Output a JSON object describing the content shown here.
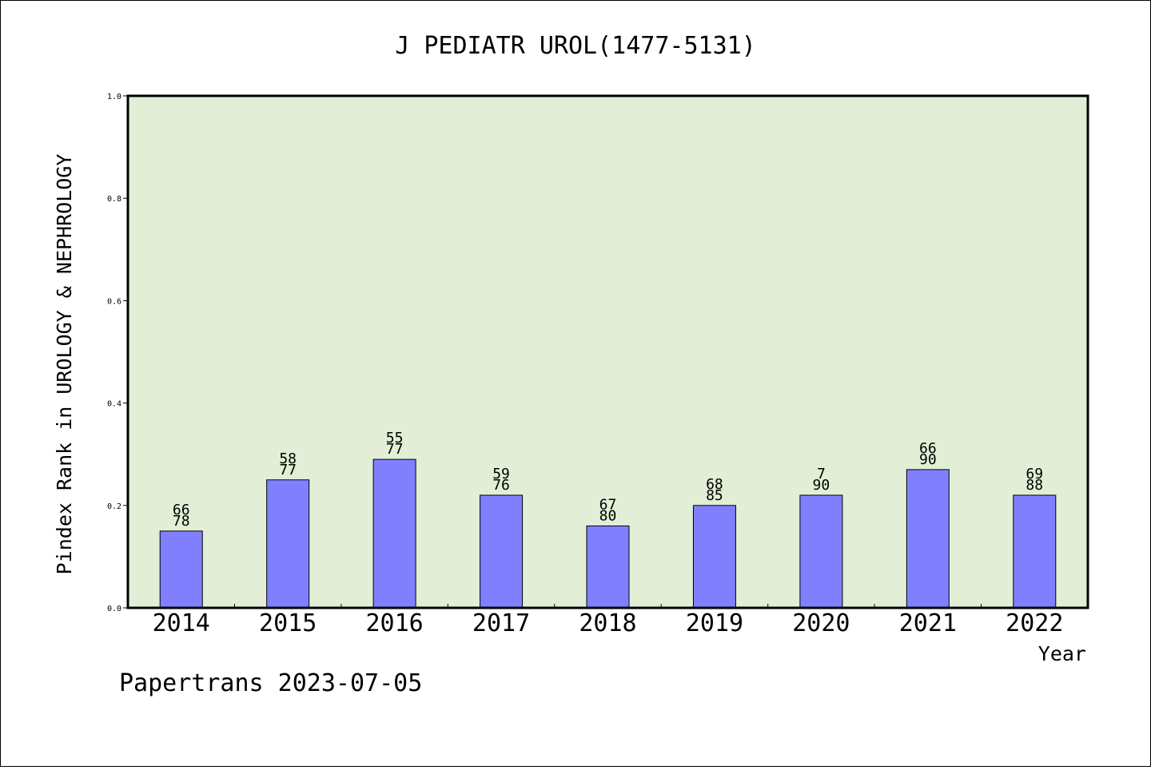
{
  "chart_data": {
    "type": "bar",
    "title": "J PEDIATR UROL(1477-5131)",
    "xlabel": "Year",
    "ylabel": "Pindex Rank in UROLOGY & NEPHROLOGY",
    "ylim": [
      0,
      1.0
    ],
    "yticks": [
      "0.0",
      "0.2",
      "0.4",
      "0.6",
      "0.8",
      "1.0"
    ],
    "categories": [
      "2014",
      "2015",
      "2016",
      "2017",
      "2018",
      "2019",
      "2020",
      "2021",
      "2022"
    ],
    "values": [
      0.15,
      0.25,
      0.29,
      0.22,
      0.16,
      0.2,
      0.22,
      0.27,
      0.22
    ],
    "label_top": [
      "66",
      "58",
      "55",
      "59",
      "67",
      "68",
      "7",
      "66",
      "69"
    ],
    "label_bottom": [
      "78",
      "77",
      "77",
      "76",
      "80",
      "85",
      "90",
      "90",
      "88"
    ],
    "bar_color": "#8080ff",
    "plot_background": "#e2efd6",
    "grid": false
  },
  "footer": "Papertrans 2023-07-05"
}
